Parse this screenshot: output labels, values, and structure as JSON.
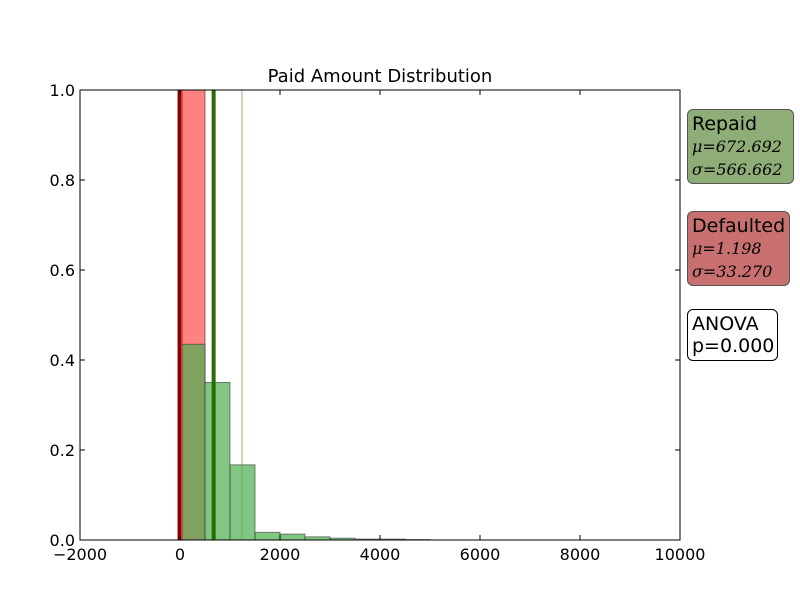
{
  "chart_data": {
    "type": "bar",
    "title": "Paid Amount Distribution",
    "xlabel": "",
    "ylabel": "",
    "xlim": [
      -2000,
      10000
    ],
    "ylim": [
      0,
      1.0
    ],
    "xticks": [
      "−2000",
      "0",
      "2000",
      "4000",
      "6000",
      "8000",
      "10000"
    ],
    "yticks": [
      "0.0",
      "0.2",
      "0.4",
      "0.6",
      "0.8",
      "1.0"
    ],
    "grid": false,
    "series": [
      {
        "name": "Repaid",
        "color": "#4caf50",
        "bin_edges": [
          0,
          500,
          1000,
          1500,
          2000,
          2500,
          3000,
          3500,
          4000,
          4500,
          5000
        ],
        "values": [
          0.435,
          0.35,
          0.167,
          0.017,
          0.013,
          0.007,
          0.004,
          0.002,
          0.002,
          0.001
        ],
        "mean_line": 672.692,
        "std_line": 1239.354
      },
      {
        "name": "Defaulted",
        "color": "#ff4d4d",
        "bin_edges": [
          0,
          500
        ],
        "values": [
          1.0
        ],
        "mean_line": 1.198,
        "std_line": 34.468
      }
    ]
  },
  "legend": {
    "repaid": {
      "title": "Repaid",
      "mu": "μ=672.692",
      "sigma": "σ=566.662",
      "bg_color": "#8fad77"
    },
    "defaulted": {
      "title": "Defaulted",
      "mu": "μ=1.198",
      "sigma": "σ=33.270",
      "bg_color": "#c87070"
    },
    "anova": {
      "title": "ANOVA",
      "p_value": "p=0.000"
    }
  }
}
